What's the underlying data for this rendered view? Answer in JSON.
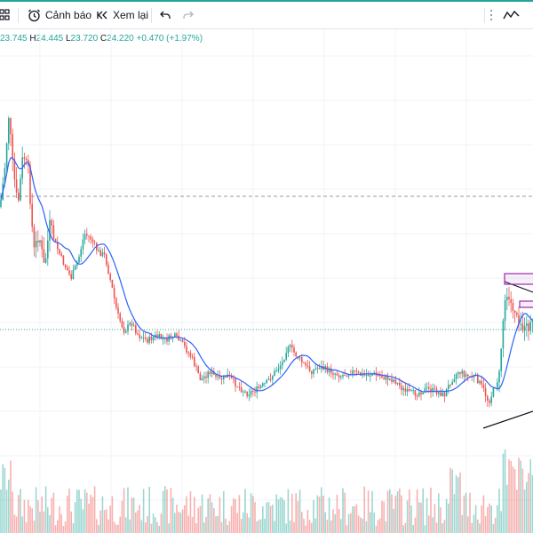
{
  "toolbar": {
    "layout_icon": "grid-layout-icon",
    "alert_icon": "alarm-clock-icon",
    "alert_label": "Cảnh báo",
    "replay_icon": "replay-icon",
    "replay_label": "Xem lại",
    "undo_icon": "undo-arrow-icon",
    "redo_icon": "redo-arrow-icon",
    "drag_icon": "vertical-dots-icon",
    "indicator_icon": "trend-line-icon"
  },
  "legend": {
    "open_value": "23.745",
    "high_key": "H",
    "high_value": "24.445",
    "low_key": "L",
    "low_value": "23.720",
    "close_key": "C",
    "close_value": "24.220",
    "change": "+0.470 (+1.97%)"
  },
  "colors": {
    "up": "#26a69a",
    "down": "#ef5350",
    "ma": "#2962ff",
    "accent": "#21a69a",
    "rect": "#9c27b0"
  }
}
